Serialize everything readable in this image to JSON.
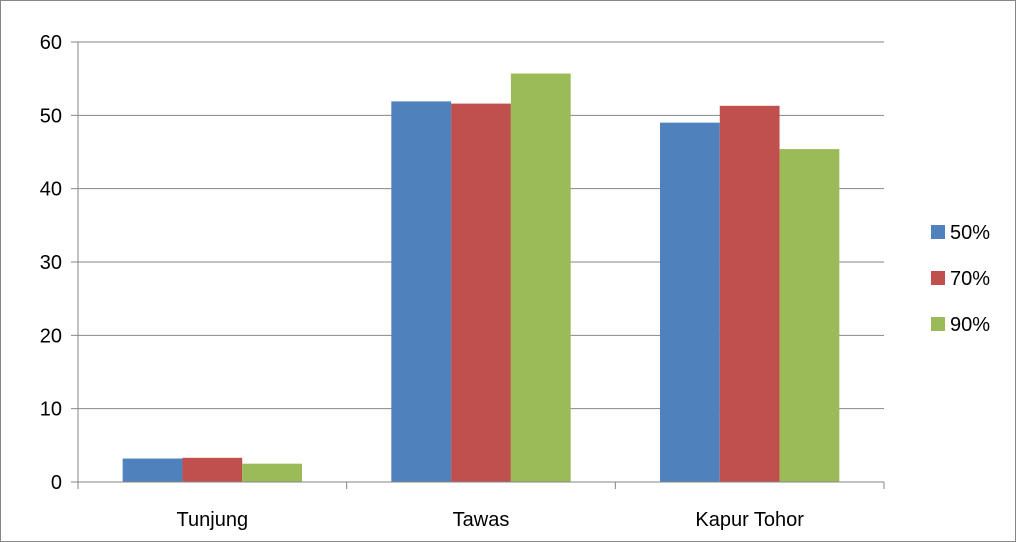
{
  "chart_data": {
    "type": "bar",
    "title": "",
    "xlabel": "",
    "ylabel": "",
    "categories": [
      "Tunjung",
      "Tawas",
      "Kapur Tohor"
    ],
    "series": [
      {
        "name": "50%",
        "color": "#4F81BD",
        "values": [
          3.2,
          51.9,
          49.0
        ]
      },
      {
        "name": "70%",
        "color": "#C0504D",
        "values": [
          3.3,
          51.6,
          51.3
        ]
      },
      {
        "name": "90%",
        "color": "#9BBB59",
        "values": [
          2.5,
          55.7,
          45.4
        ]
      }
    ],
    "ylim": [
      0,
      60
    ],
    "yticks": [
      0,
      10,
      20,
      30,
      40,
      50,
      60
    ],
    "grid": true,
    "legend_position": "right"
  }
}
